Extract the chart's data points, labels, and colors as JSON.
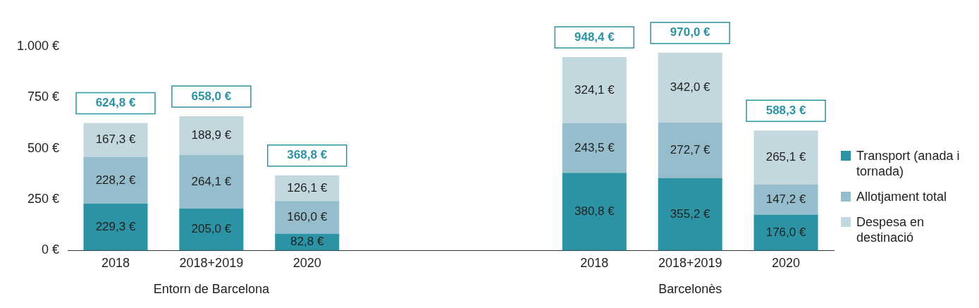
{
  "chart_data": {
    "type": "bar",
    "stacked": true,
    "categories": [
      "2018",
      "2018+2019",
      "2020",
      null,
      null,
      "2018",
      "2018+2019",
      "2020"
    ],
    "series": [
      {
        "name": "Transport (anada i tornada)",
        "color": "#2b93a4",
        "values": [
          229.3,
          205.0,
          82.8,
          null,
          null,
          380.8,
          355.2,
          176.0
        ],
        "value_labels": [
          "229,3 €",
          "205,0 €",
          "82,8 €",
          null,
          null,
          "380,8 €",
          "355,2 €",
          "176,0 €"
        ]
      },
      {
        "name": "Allotjament total",
        "color": "#95bdcb",
        "values": [
          228.2,
          264.1,
          160.0,
          null,
          null,
          243.5,
          272.7,
          147.2
        ],
        "value_labels": [
          "228,2 €",
          "264,1 €",
          "160,0 €",
          null,
          null,
          "243,5 €",
          "272,7 €",
          "147,2 €"
        ]
      },
      {
        "name": "Despesa en destinació",
        "color": "#c3d7df",
        "values": [
          167.3,
          188.9,
          126.1,
          null,
          null,
          324.1,
          342.0,
          265.1
        ],
        "value_labels": [
          "167,3 €",
          "188,9 €",
          "126,1 €",
          null,
          null,
          "324,1 €",
          "342,0 €",
          "265,1 €"
        ]
      }
    ],
    "totals": [
      "624,8 €",
      "658,0 €",
      "368,8 €",
      null,
      null,
      "948,4 €",
      "970,0 €",
      "588,3 €"
    ],
    "annotations": [
      "Entorn de Barcelona",
      "Barcelonès"
    ],
    "ylim": [
      0,
      1000
    ],
    "yticks": [
      {
        "value": 0,
        "label": "0 €"
      },
      {
        "value": 250,
        "label": "250 €"
      },
      {
        "value": 500,
        "label": "500 €"
      },
      {
        "value": 750,
        "label": "750 €"
      },
      {
        "value": 1000,
        "label": "1.000 €"
      }
    ],
    "grid": false,
    "legend": "right"
  }
}
